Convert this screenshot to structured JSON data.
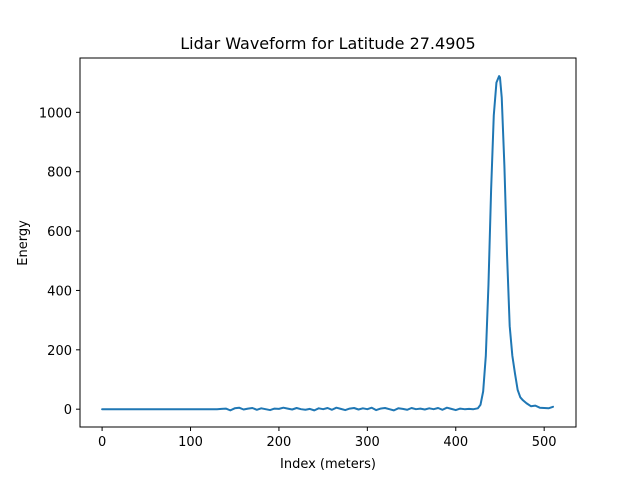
{
  "chart_data": {
    "type": "line",
    "title": "Lidar Waveform for Latitude 27.4905",
    "xlabel": "Index (meters)",
    "ylabel": "Energy",
    "xlim": [
      -25,
      536
    ],
    "ylim": [
      -60,
      1183
    ],
    "xticks": [
      0,
      100,
      200,
      300,
      400,
      500
    ],
    "yticks": [
      0,
      200,
      400,
      600,
      800,
      1000
    ],
    "grid": false,
    "series": [
      {
        "color": "#1f77b4",
        "x": [
          0,
          20,
          40,
          60,
          80,
          100,
          120,
          130,
          135,
          140,
          145,
          150,
          155,
          160,
          165,
          170,
          175,
          180,
          185,
          190,
          195,
          200,
          205,
          210,
          215,
          220,
          225,
          230,
          235,
          240,
          245,
          250,
          255,
          260,
          265,
          270,
          275,
          280,
          285,
          290,
          295,
          300,
          305,
          310,
          315,
          320,
          325,
          330,
          335,
          340,
          345,
          350,
          355,
          360,
          365,
          370,
          375,
          380,
          385,
          390,
          395,
          400,
          405,
          410,
          415,
          420,
          425,
          428,
          431,
          434,
          437,
          440,
          443,
          446,
          449,
          450,
          452,
          455,
          458,
          461,
          464,
          467,
          470,
          473,
          476,
          480,
          485,
          490,
          495,
          500,
          505,
          510
        ],
        "y": [
          0,
          0,
          0,
          0,
          0,
          0,
          0,
          0,
          1,
          2,
          -4,
          3,
          5,
          -1,
          2,
          4,
          -2,
          3,
          0,
          -3,
          2,
          1,
          5,
          2,
          -1,
          4,
          0,
          -2,
          1,
          -4,
          3,
          0,
          4,
          -2,
          5,
          1,
          -3,
          2,
          4,
          -1,
          3,
          0,
          5,
          -3,
          2,
          4,
          0,
          -4,
          3,
          1,
          -2,
          4,
          0,
          2,
          -1,
          3,
          0,
          4,
          -2,
          5,
          1,
          -3,
          2,
          0,
          1,
          0,
          3,
          15,
          60,
          180,
          420,
          740,
          990,
          1100,
          1122,
          1118,
          1050,
          820,
          520,
          280,
          180,
          120,
          65,
          40,
          30,
          20,
          10,
          12,
          5,
          4,
          3,
          8
        ]
      }
    ]
  }
}
